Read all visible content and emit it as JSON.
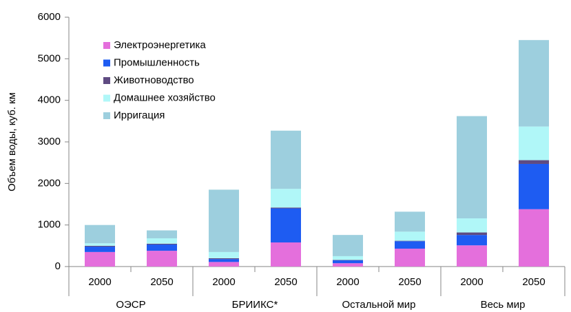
{
  "chart_data": {
    "type": "stacked_bar",
    "y_label": "Объем воды, куб. км",
    "categories": [
      "2000",
      "2050",
      "2000",
      "2050",
      "2000",
      "2050",
      "2000",
      "2050"
    ],
    "groups": [
      "ОЭСР",
      "БРИИКС*",
      "Остальной мир",
      "Весь мир"
    ],
    "series": [
      {
        "name": "Электроэнергетика",
        "color": "#e46fdc",
        "values": [
          350,
          380,
          110,
          580,
          80,
          430,
          510,
          1380
        ]
      },
      {
        "name": "Промышленность",
        "color": "#1e5cf2",
        "values": [
          130,
          150,
          70,
          820,
          70,
          180,
          250,
          1090
        ]
      },
      {
        "name": "Животноводство",
        "color": "#5f4b82",
        "values": [
          20,
          20,
          20,
          20,
          10,
          10,
          60,
          90
        ]
      },
      {
        "name": "Домашнее хозяйство",
        "color": "#b0f7f8",
        "values": [
          60,
          130,
          150,
          450,
          90,
          220,
          340,
          810
        ]
      },
      {
        "name": "Ирригация",
        "color": "#9dcfde",
        "values": [
          440,
          190,
          1500,
          1400,
          510,
          480,
          2460,
          2080
        ]
      }
    ],
    "ylim": [
      0,
      6000
    ],
    "yticks": [
      0,
      1000,
      2000,
      3000,
      4000,
      5000,
      6000
    ],
    "legend": "upper left"
  }
}
